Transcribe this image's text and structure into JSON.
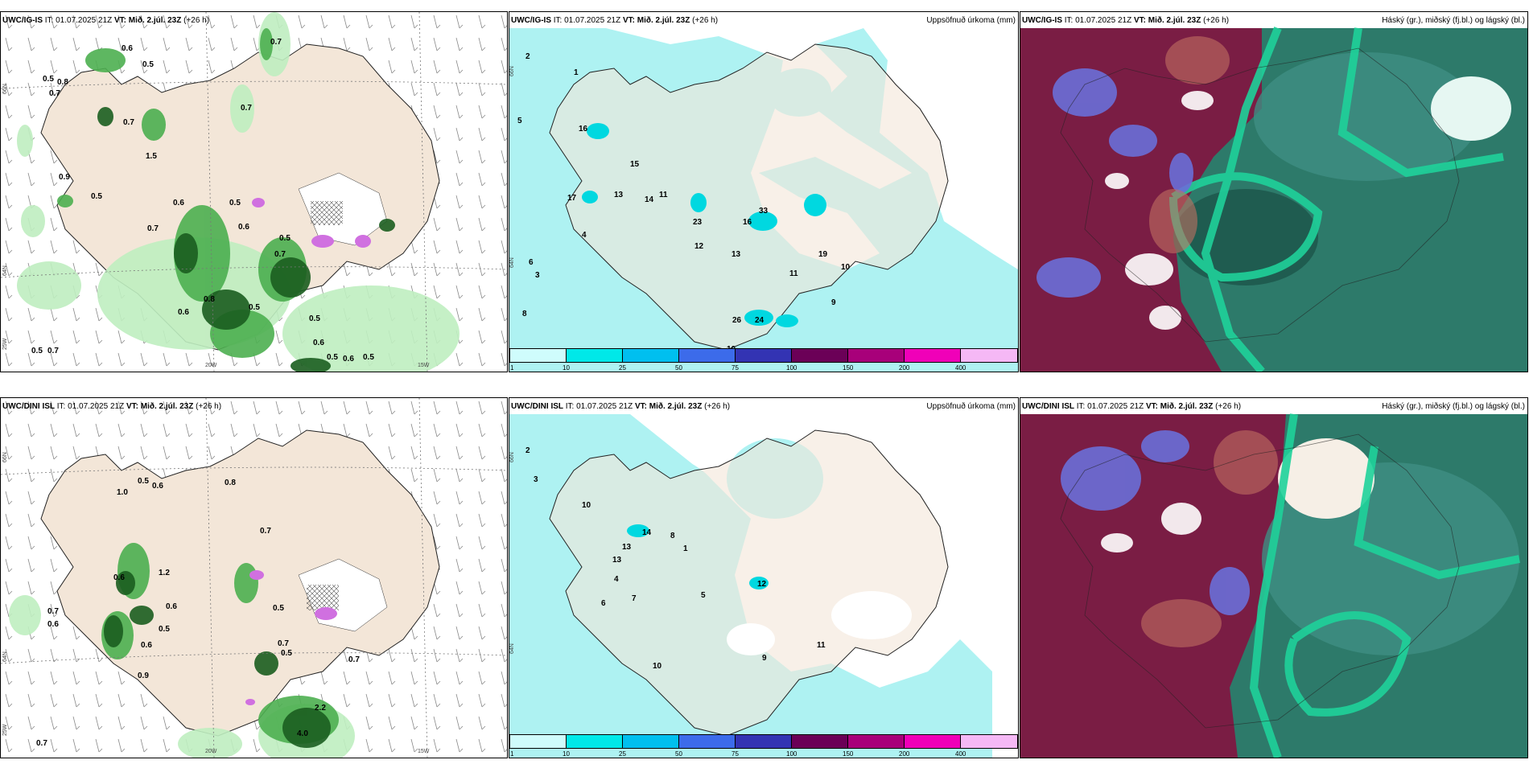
{
  "panels": {
    "top_left": {
      "model": "UWC/IG-IS",
      "it": "IT: 01.07.2025 21Z",
      "vt_label": "VT:",
      "vt_value": "Mið. 2.júl. 23Z",
      "lead": "(+26 h)"
    },
    "top_mid": {
      "model": "UWC/IG-IS",
      "it": "IT: 01.07.2025 21Z",
      "vt_label": "VT:",
      "vt_value": "Mið. 2.júl. 23Z",
      "lead": "(+26 h)",
      "title": "Uppsöfnuð úrkoma (mm)"
    },
    "top_right": {
      "model": "UWC/IG-IS",
      "it": "IT: 01.07.2025 21Z",
      "vt_label": "VT:",
      "vt_value": "Mið. 2.júl. 23Z",
      "lead": "(+26 h)",
      "title": "Háský (gr.), miðský (fj.bl.) og lágský (bl.)"
    },
    "bot_left": {
      "model": "UWC/DINI ISL",
      "it": "IT: 01.07.2025 21Z",
      "vt_label": "VT:",
      "vt_value": "Mið. 2.júl. 23Z",
      "lead": "(+26 h)"
    },
    "bot_mid": {
      "model": "UWC/DINI ISL",
      "it": "IT: 01.07.2025 21Z",
      "vt_label": "VT:",
      "vt_value": "Mið. 2.júl. 23Z",
      "lead": "(+26 h)",
      "title": "Uppsöfnuð úrkoma (mm)"
    },
    "bot_right": {
      "model": "UWC/DINI ISL",
      "it": "IT: 01.07.2025 21Z",
      "vt_label": "VT:",
      "vt_value": "Mið. 2.júl. 23Z",
      "lead": "(+26 h)",
      "title": "Háský (gr.), miðský (fj.bl.) og lágský (bl.)"
    }
  },
  "axes": {
    "lon_20w": "20W",
    "lon_15w": "15W",
    "lon_25w": "25W",
    "lat_66n": "66N",
    "lat_64n": "64N"
  },
  "colorbar": {
    "ticks": [
      "1",
      "10",
      "25",
      "50",
      "75",
      "100",
      "150",
      "200",
      "400"
    ],
    "colors": [
      "#cffcfc",
      "#00e8e8",
      "#00bfef",
      "#3c6bea",
      "#3333b3",
      "#6b0057",
      "#a8007a",
      "#f000b8",
      "#f5b8f5"
    ]
  },
  "colors": {
    "land": "#f3e6d8",
    "sea": "#ffffff",
    "precip_light": "#bfeec0",
    "precip_mid": "#4caf50",
    "precip_dark": "#1b5e20",
    "cloud_high": "#2d7a6a",
    "cloud_mid": "#7a1d44",
    "cloud_low": "#6a6fd8",
    "cloud_green": "#1fd19a"
  },
  "labels": {
    "top_left": [
      "0.7",
      "0.6",
      "0.5",
      "0.8",
      "0.7",
      "0.5",
      "0.7",
      "0.7",
      "1.5",
      "0.9",
      "0.5",
      "0.6",
      "0.5",
      "0.7",
      "0.6",
      "0.5",
      "0.7",
      "0.5",
      "0.8",
      "0.6",
      "0.5",
      "0.5",
      "0.7",
      "0.5",
      "0.6",
      "0.5",
      "0.6"
    ],
    "top_mid": [
      "2",
      "1",
      "5",
      "16",
      "15",
      "11",
      "14",
      "13",
      "23",
      "16",
      "33",
      "13",
      "19",
      "12",
      "10",
      "11",
      "17",
      "24",
      "26",
      "3",
      "4",
      "6",
      "8",
      "9",
      "10"
    ],
    "bot_left": [
      "0.8",
      "0.5",
      "1.0",
      "0.6",
      "0.7",
      "0.6",
      "1.2",
      "0.6",
      "0.5",
      "0.6",
      "0.7",
      "0.5",
      "0.7",
      "0.5",
      "0.9",
      "0.7",
      "0.6",
      "0.7",
      "2.2",
      "4.0"
    ],
    "bot_mid": [
      "2",
      "3",
      "13",
      "14",
      "12",
      "10",
      "10",
      "5",
      "8",
      "9",
      "1",
      "4",
      "6",
      "7",
      "11",
      "13"
    ]
  }
}
